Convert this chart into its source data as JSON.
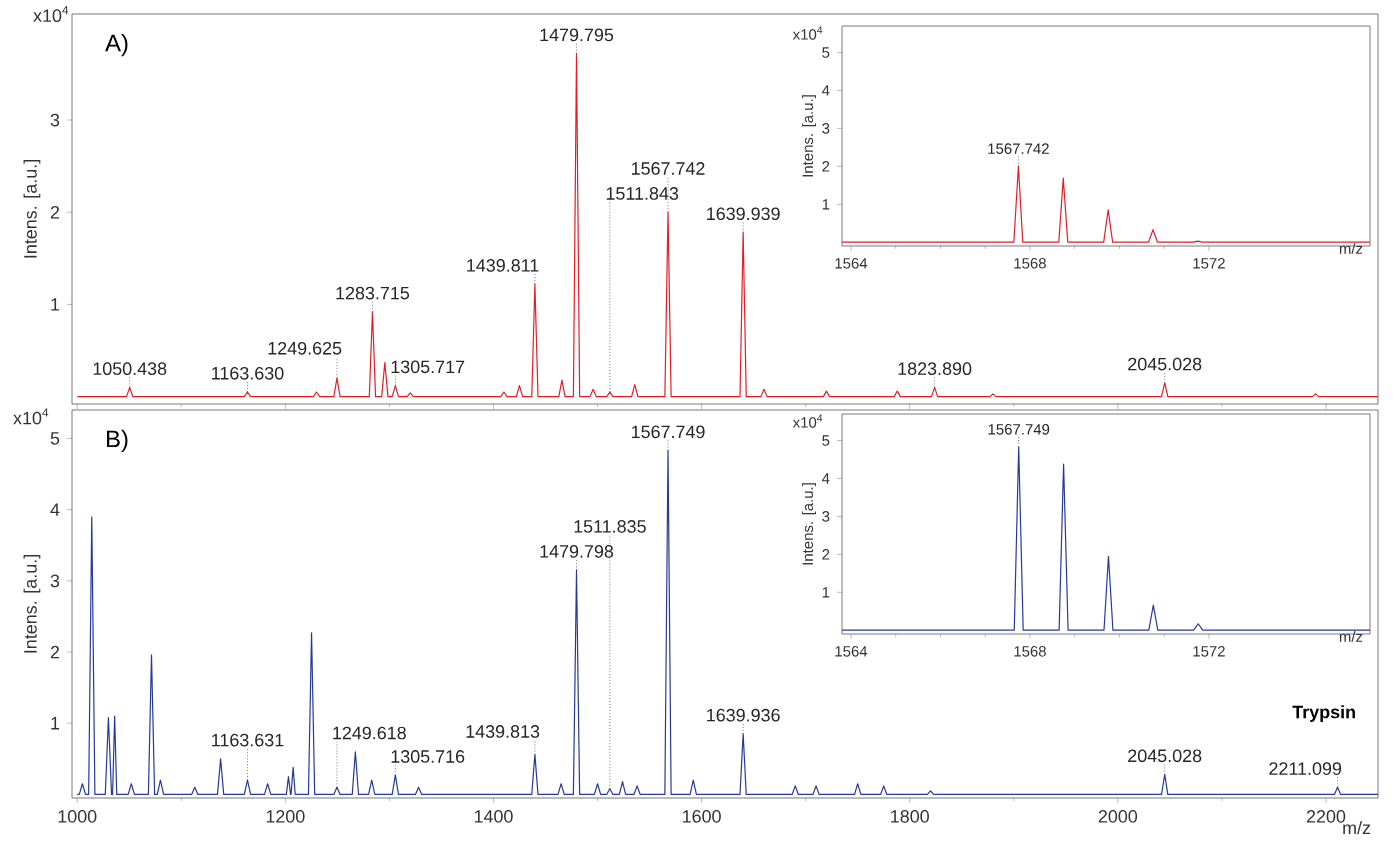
{
  "chart_data": [
    {
      "type": "line",
      "title": "A)",
      "ylabel": "Intens. [a.u.]",
      "color": "#e31d25",
      "marker": "none",
      "line_style": "solid",
      "tick_labels": "y",
      "xlim": [
        995,
        2250
      ],
      "xticks": [
        1000,
        1200,
        1400,
        1600,
        1800,
        2000,
        2200
      ],
      "ylim": [
        -0.08,
        4.15
      ],
      "yticks": [
        1,
        2,
        3
      ],
      "x": [
        1000,
        1047.4,
        1050.438,
        1053.4,
        1160.6,
        1163.63,
        1166.6,
        1227,
        1230,
        1233,
        1246.6,
        1249.625,
        1252.6,
        1280.7,
        1283.715,
        1286.7,
        1292.6,
        1295.6,
        1298.6,
        1302.7,
        1305.717,
        1308.7,
        1317,
        1320,
        1323,
        1407,
        1410,
        1413,
        1422,
        1425,
        1428,
        1436.8,
        1439.811,
        1442.8,
        1462.8,
        1465.8,
        1468.8,
        1476.8,
        1479.795,
        1482.8,
        1492.8,
        1495.8,
        1498.8,
        1508.8,
        1511.843,
        1514.8,
        1532.8,
        1535.8,
        1538.8,
        1564.7,
        1567.742,
        1570.7,
        1636.9,
        1639.939,
        1642.9,
        1657,
        1660,
        1663,
        1717,
        1720,
        1723,
        1785,
        1788,
        1791,
        1820.9,
        1823.89,
        1826.9,
        1877,
        1880,
        1883,
        2042,
        2045.028,
        2048,
        2187,
        2190,
        2193,
        2250
      ],
      "values": [
        0,
        0,
        0.1,
        0,
        0,
        0.05,
        0,
        0,
        0.05,
        0,
        0,
        0.2,
        0,
        0,
        0.92,
        0,
        0,
        0.37,
        0,
        0,
        0.12,
        0,
        0,
        0.04,
        0,
        0,
        0.05,
        0,
        0,
        0.12,
        0,
        0,
        1.22,
        0,
        0,
        0.18,
        0,
        0,
        3.72,
        0,
        0,
        0.08,
        0,
        0,
        0.05,
        0,
        0,
        0.13,
        0,
        0,
        2.0,
        0,
        0,
        1.78,
        0,
        0,
        0.08,
        0,
        0,
        0.06,
        0,
        0,
        0.06,
        0,
        0,
        0.1,
        0,
        0,
        0.03,
        0,
        0,
        0.15,
        0,
        0,
        0.03,
        0,
        0
      ],
      "annotations": [
        "x10$^{4}$",
        {
          "text": "1050.438",
          "x": 1050.438,
          "y": 0.1
        },
        {
          "text": "1163.630",
          "x": 1163.63,
          "y": 0.05
        },
        {
          "text": "1249.625",
          "x": 1249.625,
          "y": 0.2
        },
        {
          "text": "1283.715",
          "x": 1283.715,
          "y": 0.92
        },
        {
          "text": "1305.717",
          "x": 1305.717,
          "y": 0.12
        },
        {
          "text": "1439.811",
          "x": 1439.811,
          "y": 1.22
        },
        {
          "text": "1479.795",
          "x": 1479.795,
          "y": 3.72
        },
        {
          "text": "1511.843",
          "x": 1511.843,
          "y": 0.05
        },
        {
          "text": "1567.742",
          "x": 1567.742,
          "y": 2.0
        },
        {
          "text": "1639.939",
          "x": 1639.939,
          "y": 1.78
        },
        {
          "text": "1823.890",
          "x": 1823.89,
          "y": 0.1
        },
        {
          "text": "2045.028",
          "x": 2045.028,
          "y": 0.15
        }
      ]
    },
    {
      "type": "line",
      "xlabel": "m/z",
      "ylabel": "Intens. [a.u.]",
      "color": "#e31d25",
      "marker": "none",
      "line_style": "solid",
      "xlim": [
        1563.8,
        1575.6
      ],
      "xticks": [
        1564,
        1568,
        1572
      ],
      "ylim": [
        -0.1,
        5.7
      ],
      "yticks": [
        1,
        2,
        3,
        4,
        5
      ],
      "x": [
        1563.8,
        1567.64,
        1567.742,
        1567.84,
        1568.645,
        1568.745,
        1568.845,
        1569.648,
        1569.748,
        1569.848,
        1570.65,
        1570.75,
        1570.85,
        1571.65,
        1571.75,
        1571.85,
        1575.6
      ],
      "values": [
        0,
        0,
        2.0,
        0,
        0,
        1.69,
        0,
        0,
        0.85,
        0,
        0,
        0.33,
        0,
        0,
        0.03,
        0,
        0
      ],
      "annotations": [
        "x10$^{4}$",
        {
          "text": "1567.742",
          "x": 1567.742,
          "y": 2.0
        }
      ]
    },
    {
      "type": "line",
      "title": "B)",
      "xlabel": "m/z",
      "ylabel": "Intens. [a.u.]",
      "color": "#25399a",
      "marker": "none",
      "line_style": "solid",
      "xlim": [
        995,
        2250
      ],
      "xticks": [
        1000,
        1200,
        1400,
        1600,
        1800,
        2000,
        2200
      ],
      "ylim": [
        -0.05,
        5.4
      ],
      "yticks": [
        1,
        2,
        3,
        4,
        5
      ],
      "x": [
        1000,
        1002,
        1005,
        1008,
        1011,
        1014,
        1017,
        1027,
        1030,
        1033,
        1034,
        1036,
        1038,
        1049,
        1052,
        1055,
        1068.4,
        1071.4,
        1074.4,
        1077,
        1080,
        1083,
        1110,
        1113,
        1116,
        1134.8,
        1137.8,
        1140.8,
        1160.6,
        1163.631,
        1166.6,
        1180,
        1183,
        1186,
        1201,
        1203,
        1205,
        1205.5,
        1207.5,
        1209.5,
        1222.2,
        1225.2,
        1228.2,
        1246.6,
        1249.618,
        1252.6,
        1264.3,
        1267.3,
        1270.3,
        1280,
        1283,
        1286,
        1302.7,
        1305.716,
        1308.7,
        1325,
        1328,
        1331,
        1436.8,
        1439.813,
        1442.8,
        1462,
        1465,
        1468,
        1476.8,
        1479.798,
        1482.8,
        1497,
        1500,
        1503,
        1508.8,
        1511.835,
        1514.8,
        1521,
        1524,
        1527,
        1535,
        1538,
        1541,
        1564.7,
        1567.749,
        1570.7,
        1589,
        1592,
        1595,
        1636.9,
        1639.936,
        1642.9,
        1687,
        1690,
        1693,
        1707,
        1710,
        1713,
        1747,
        1750,
        1753,
        1772,
        1775,
        1778,
        1817,
        1820,
        1823,
        2042,
        2045.028,
        2048,
        2208.1,
        2211.099,
        2214.1,
        2250
      ],
      "values": [
        0,
        0,
        0.15,
        0,
        0,
        3.9,
        0,
        0,
        1.08,
        0,
        0,
        1.1,
        0,
        0,
        0.15,
        0,
        0,
        1.96,
        0,
        0,
        0.2,
        0,
        0,
        0.1,
        0,
        0,
        0.5,
        0,
        0,
        0.2,
        0,
        0,
        0.15,
        0,
        0,
        0.25,
        0,
        0,
        0.38,
        0,
        0,
        2.27,
        0,
        0,
        0.1,
        0,
        0,
        0.6,
        0,
        0,
        0.2,
        0,
        0,
        0.27,
        0,
        0,
        0.1,
        0,
        0,
        0.56,
        0,
        0,
        0.15,
        0,
        0,
        3.15,
        0,
        0,
        0.15,
        0,
        0,
        0.08,
        0,
        0,
        0.18,
        0,
        0,
        0.12,
        0,
        0,
        4.83,
        0,
        0,
        0.2,
        0,
        0,
        0.85,
        0,
        0,
        0.12,
        0,
        0,
        0.12,
        0,
        0,
        0.15,
        0,
        0,
        0.12,
        0,
        0,
        0.05,
        0,
        0,
        0.28,
        0,
        0,
        0.1,
        0,
        0
      ],
      "annotations": [
        "x10$^{4}$",
        "Trypsin",
        {
          "text": "1163.631",
          "x": 1163.631,
          "y": 0.2
        },
        {
          "text": "1249.618",
          "x": 1249.618,
          "y": 0.1
        },
        {
          "text": "1305.716",
          "x": 1305.716,
          "y": 0.27
        },
        {
          "text": "1439.813",
          "x": 1439.813,
          "y": 0.56
        },
        {
          "text": "1479.798",
          "x": 1479.798,
          "y": 3.15
        },
        {
          "text": "1511.835",
          "x": 1511.835,
          "y": 0.08
        },
        {
          "text": "1567.749",
          "x": 1567.749,
          "y": 4.83
        },
        {
          "text": "1639.936",
          "x": 1639.936,
          "y": 0.85
        },
        {
          "text": "2045.028",
          "x": 2045.028,
          "y": 0.28
        },
        {
          "text": "2211.099",
          "x": 2211.099,
          "y": 0.1
        }
      ]
    },
    {
      "type": "line",
      "xlabel": "m/z",
      "ylabel": "Intens. [a.u.]",
      "color": "#25399a",
      "marker": "none",
      "line_style": "solid",
      "xlim": [
        1563.8,
        1575.6
      ],
      "xticks": [
        1564,
        1568,
        1572
      ],
      "ylim": [
        -0.1,
        5.7
      ],
      "yticks": [
        1,
        2,
        3,
        4,
        5
      ],
      "x": [
        1563.8,
        1567.649,
        1567.749,
        1567.849,
        1568.652,
        1568.752,
        1568.852,
        1569.655,
        1569.755,
        1569.855,
        1570.657,
        1570.757,
        1570.857,
        1571.66,
        1571.76,
        1571.86,
        1575.6
      ],
      "values": [
        0,
        0,
        4.83,
        0,
        0,
        4.38,
        0,
        0,
        1.95,
        0,
        0,
        0.66,
        0,
        0,
        0.17,
        0,
        0
      ],
      "annotations": [
        "x10$^{4}$",
        {
          "text": "1567.749",
          "x": 1567.749,
          "y": 4.83
        }
      ]
    }
  ]
}
